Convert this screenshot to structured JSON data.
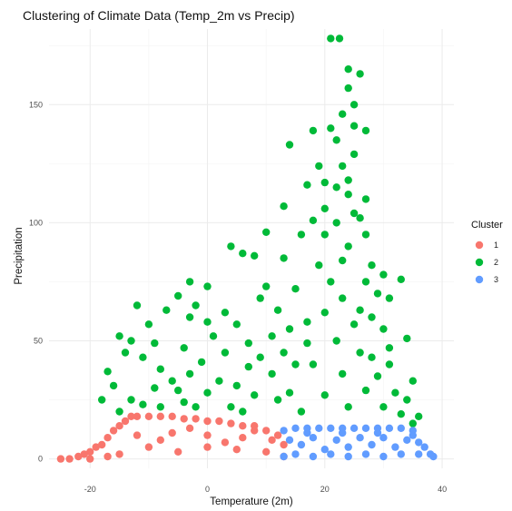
{
  "chart_data": {
    "type": "scatter",
    "title": "Clustering of Climate Data (Temp_2m vs Precip)",
    "xlabel": "Temperature (2m)",
    "ylabel": "Precipitation",
    "xlim": [
      -27,
      42
    ],
    "ylim": [
      -4,
      182
    ],
    "x_ticks": [
      -20,
      0,
      20,
      40
    ],
    "x_tick_labels": [
      "-20",
      "0",
      "20",
      "40"
    ],
    "y_ticks": [
      0,
      50,
      100,
      150
    ],
    "y_tick_labels": [
      "0",
      "50",
      "100",
      "150"
    ],
    "grid": true,
    "legend": {
      "title": "Cluster",
      "position": "right",
      "entries": [
        {
          "label": "1",
          "color": "#F8766D"
        },
        {
          "label": "2",
          "color": "#00BA38"
        },
        {
          "label": "3",
          "color": "#619CFF"
        }
      ]
    },
    "series": [
      {
        "name": "1",
        "color": "#F8766D",
        "points": [
          [
            -25,
            0
          ],
          [
            -23.5,
            0
          ],
          [
            -22,
            1
          ],
          [
            -21,
            2
          ],
          [
            -20,
            3
          ],
          [
            -19,
            5
          ],
          [
            -18,
            6
          ],
          [
            -17,
            9
          ],
          [
            -16,
            12
          ],
          [
            -15,
            14
          ],
          [
            -14,
            16
          ],
          [
            -13,
            18
          ],
          [
            -12,
            18
          ],
          [
            -10,
            18
          ],
          [
            -8,
            18
          ],
          [
            -6,
            18
          ],
          [
            -4,
            17
          ],
          [
            -2,
            17
          ],
          [
            0,
            16
          ],
          [
            2,
            16
          ],
          [
            4,
            15
          ],
          [
            6,
            14
          ],
          [
            8,
            14
          ],
          [
            10,
            12
          ],
          [
            12,
            10
          ],
          [
            13,
            6
          ],
          [
            -20,
            0
          ],
          [
            -15,
            2
          ],
          [
            -10,
            5
          ],
          [
            -5,
            3
          ],
          [
            0,
            5
          ],
          [
            5,
            4
          ],
          [
            10,
            3
          ],
          [
            13,
            1
          ],
          [
            -12,
            10
          ],
          [
            -6,
            11
          ],
          [
            0,
            10
          ],
          [
            6,
            9
          ],
          [
            11,
            8
          ],
          [
            -17,
            1
          ],
          [
            -8,
            8
          ],
          [
            3,
            7
          ],
          [
            -3,
            13
          ],
          [
            8,
            12
          ]
        ]
      },
      {
        "name": "2",
        "color": "#00BA38",
        "points": [
          [
            21,
            178
          ],
          [
            22.5,
            178
          ],
          [
            24,
            165
          ],
          [
            26,
            163
          ],
          [
            24,
            157
          ],
          [
            25,
            150
          ],
          [
            23,
            146
          ],
          [
            25,
            141
          ],
          [
            21,
            140
          ],
          [
            18,
            139
          ],
          [
            27,
            139
          ],
          [
            22,
            135
          ],
          [
            14,
            133
          ],
          [
            25,
            129
          ],
          [
            19,
            124
          ],
          [
            23,
            124
          ],
          [
            24,
            118
          ],
          [
            20,
            117
          ],
          [
            22,
            115
          ],
          [
            17,
            116
          ],
          [
            24,
            112
          ],
          [
            27,
            110
          ],
          [
            20,
            106
          ],
          [
            13,
            107
          ],
          [
            25,
            104
          ],
          [
            26,
            102
          ],
          [
            22,
            100
          ],
          [
            18,
            101
          ],
          [
            10,
            96
          ],
          [
            16,
            95
          ],
          [
            20,
            95
          ],
          [
            4,
            90
          ],
          [
            6,
            87
          ],
          [
            8,
            86
          ],
          [
            13,
            85
          ],
          [
            23,
            84
          ],
          [
            28,
            82
          ],
          [
            30,
            78
          ],
          [
            27,
            75
          ],
          [
            33,
            76
          ],
          [
            -3,
            75
          ],
          [
            0,
            73
          ],
          [
            10,
            73
          ],
          [
            15,
            72
          ],
          [
            29,
            70
          ],
          [
            31,
            68
          ],
          [
            9,
            68
          ],
          [
            -5,
            69
          ],
          [
            -12,
            65
          ],
          [
            -7,
            63
          ],
          [
            -2,
            65
          ],
          [
            3,
            62
          ],
          [
            12,
            63
          ],
          [
            -3,
            60
          ],
          [
            0,
            58
          ],
          [
            -10,
            57
          ],
          [
            -15,
            52
          ],
          [
            -13,
            50
          ],
          [
            5,
            57
          ],
          [
            -9,
            49
          ],
          [
            -17,
            37
          ],
          [
            -14,
            45
          ],
          [
            -11,
            43
          ],
          [
            -8,
            38
          ],
          [
            -4,
            47
          ],
          [
            -1,
            41
          ],
          [
            3,
            45
          ],
          [
            7,
            49
          ],
          [
            11,
            52
          ],
          [
            14,
            55
          ],
          [
            25,
            57
          ],
          [
            34,
            51
          ],
          [
            31,
            47
          ],
          [
            17,
            49
          ],
          [
            28,
            43
          ],
          [
            35,
            33
          ],
          [
            23,
            36
          ],
          [
            -18,
            25
          ],
          [
            -16,
            31
          ],
          [
            -13,
            25
          ],
          [
            -9,
            30
          ],
          [
            -5,
            29
          ],
          [
            -2,
            22
          ],
          [
            0,
            28
          ],
          [
            2,
            33
          ],
          [
            5,
            31
          ],
          [
            8,
            27
          ],
          [
            12,
            25
          ],
          [
            16,
            20
          ],
          [
            20,
            27
          ],
          [
            24,
            22
          ],
          [
            27,
            29
          ],
          [
            30,
            22
          ],
          [
            33,
            19
          ],
          [
            35,
            15
          ],
          [
            -8,
            22
          ],
          [
            -4,
            24
          ],
          [
            4,
            22
          ],
          [
            14,
            28
          ],
          [
            18,
            40
          ],
          [
            22,
            50
          ],
          [
            26,
            45
          ],
          [
            29,
            35
          ],
          [
            32,
            28
          ],
          [
            -15,
            20
          ],
          [
            -11,
            23
          ],
          [
            7,
            39
          ],
          [
            11,
            36
          ],
          [
            15,
            40
          ],
          [
            20,
            62
          ],
          [
            23,
            68
          ],
          [
            26,
            63
          ],
          [
            30,
            55
          ],
          [
            9,
            43
          ],
          [
            13,
            45
          ],
          [
            17,
            58
          ],
          [
            21,
            75
          ],
          [
            24,
            90
          ],
          [
            28,
            60
          ],
          [
            31,
            40
          ],
          [
            34,
            25
          ],
          [
            36,
            18
          ],
          [
            6,
            20
          ],
          [
            -6,
            33
          ],
          [
            -3,
            36
          ],
          [
            1,
            52
          ],
          [
            19,
            82
          ],
          [
            27,
            95
          ]
        ]
      },
      {
        "name": "3",
        "color": "#619CFF",
        "points": [
          [
            13,
            12
          ],
          [
            15,
            13
          ],
          [
            17,
            13
          ],
          [
            19,
            13
          ],
          [
            21,
            13
          ],
          [
            23,
            13
          ],
          [
            25,
            13
          ],
          [
            27,
            13
          ],
          [
            29,
            13
          ],
          [
            31,
            13
          ],
          [
            33,
            13
          ],
          [
            35,
            12
          ],
          [
            37,
            5
          ],
          [
            38.5,
            1
          ],
          [
            14,
            8
          ],
          [
            16,
            6
          ],
          [
            18,
            9
          ],
          [
            20,
            4
          ],
          [
            22,
            8
          ],
          [
            24,
            5
          ],
          [
            26,
            9
          ],
          [
            28,
            6
          ],
          [
            30,
            9
          ],
          [
            32,
            5
          ],
          [
            34,
            8
          ],
          [
            36,
            7
          ],
          [
            13,
            1
          ],
          [
            15,
            2
          ],
          [
            18,
            1
          ],
          [
            21,
            2
          ],
          [
            24,
            1
          ],
          [
            27,
            2
          ],
          [
            30,
            1
          ],
          [
            33,
            2
          ],
          [
            36,
            2
          ],
          [
            38,
            2
          ],
          [
            17,
            11
          ],
          [
            23,
            11
          ],
          [
            29,
            11
          ],
          [
            35,
            10
          ]
        ]
      }
    ]
  }
}
